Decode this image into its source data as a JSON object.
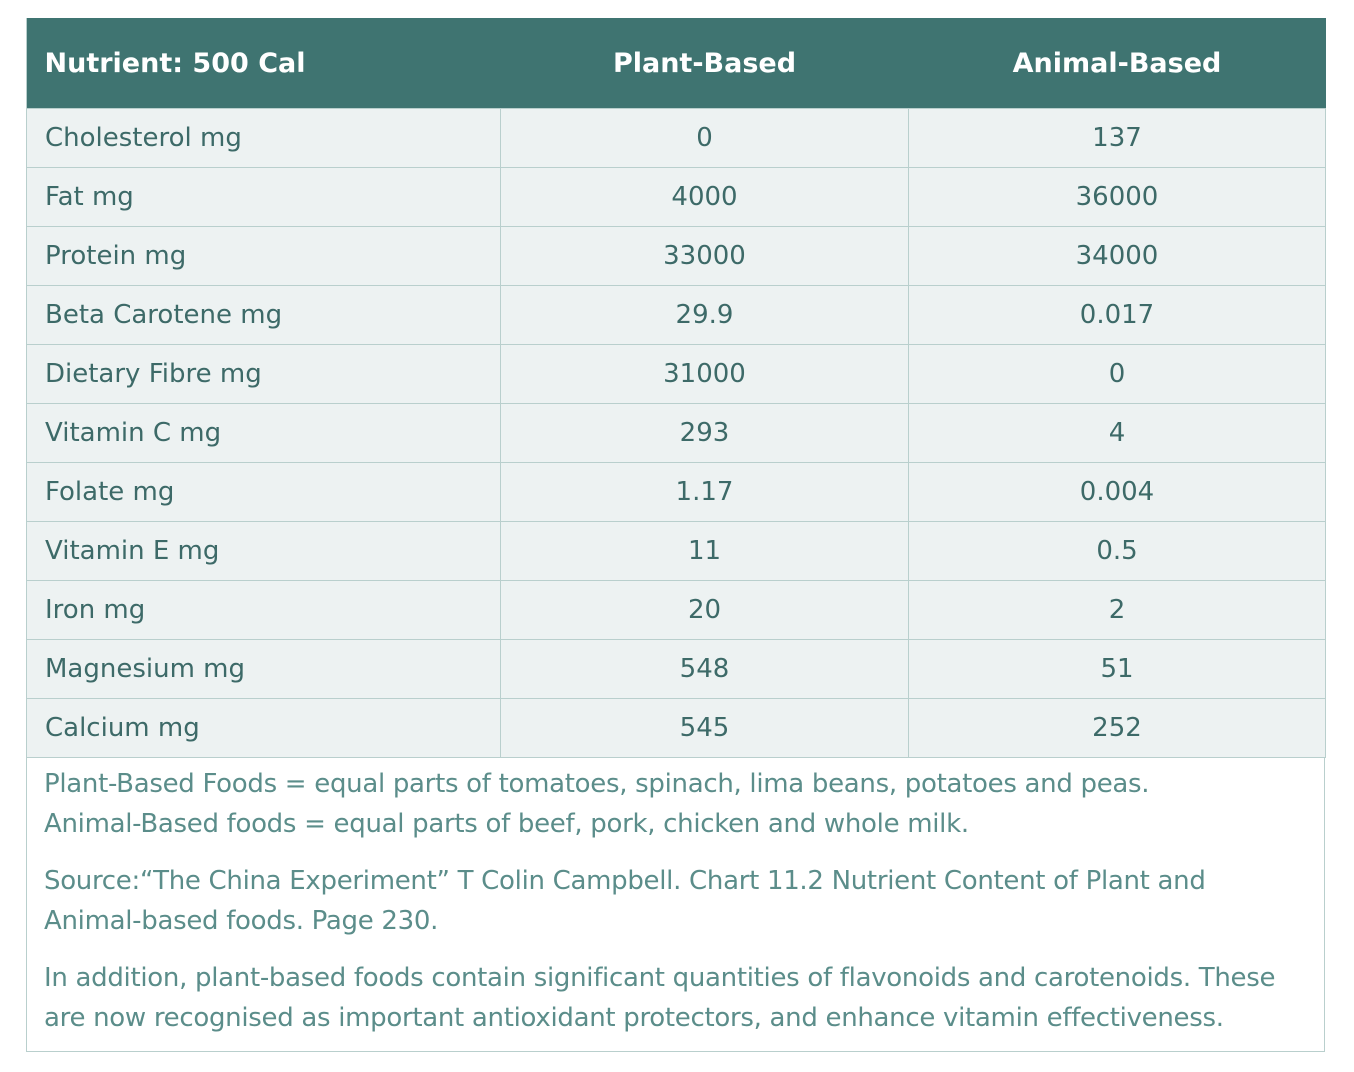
{
  "table": {
    "header": [
      "Nutrient: 500 Cal",
      "Plant-Based",
      "Animal-Based"
    ],
    "rows": [
      [
        "Cholesterol mg",
        "0",
        "137"
      ],
      [
        "Fat mg",
        "4000",
        "36000"
      ],
      [
        "Protein mg",
        "33000",
        "34000"
      ],
      [
        "Beta Carotene mg",
        "29.9",
        "0.017"
      ],
      [
        "Dietary Fibre mg",
        "31000",
        "0"
      ],
      [
        "Vitamin C mg",
        "293",
        "4"
      ],
      [
        "Folate mg",
        "1.17",
        "0.004"
      ],
      [
        "Vitamin E mg",
        "11",
        "0.5"
      ],
      [
        "Iron mg",
        "20",
        "2"
      ],
      [
        "Magnesium mg",
        "548",
        "51"
      ],
      [
        "Calcium mg",
        "545",
        "252"
      ]
    ]
  },
  "notes": [
    [
      "Plant-Based Foods = equal parts of tomatoes, spinach, lima beans, potatoes and peas.",
      "Animal-Based foods = equal parts of beef, pork, chicken and whole milk."
    ],
    [
      "Source:“The China Experiment” T Colin Campbell. Chart 11.2 Nutrient Content of Plant and",
      "Animal-based foods. Page 230."
    ],
    [
      "In addition, plant-based foods contain significant quantities of flavonoids and carotenoids. These",
      "are now recognised as important antioxidant protectors, and enhance vitamin effectiveness."
    ]
  ]
}
